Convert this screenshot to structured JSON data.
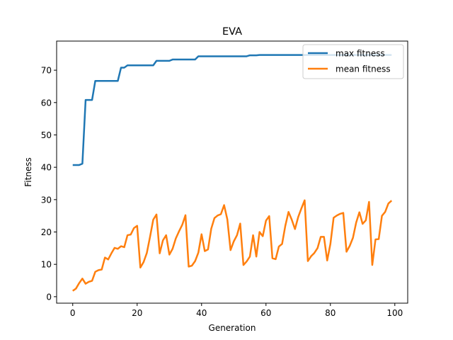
{
  "chart_data": {
    "type": "line",
    "title": "EVA",
    "xlabel": "Generation",
    "ylabel": "Fitness",
    "xlim": [
      -5,
      104
    ],
    "ylim": [
      -2,
      79
    ],
    "xticks": [
      0,
      20,
      40,
      60,
      80,
      100
    ],
    "yticks": [
      0,
      10,
      20,
      30,
      40,
      50,
      60,
      70
    ],
    "legend_position": "top-right",
    "grid": false,
    "x": [
      0,
      1,
      2,
      3,
      4,
      5,
      6,
      7,
      8,
      9,
      10,
      11,
      12,
      13,
      14,
      15,
      16,
      17,
      18,
      19,
      20,
      21,
      22,
      23,
      24,
      25,
      26,
      27,
      28,
      29,
      30,
      31,
      32,
      33,
      34,
      35,
      36,
      37,
      38,
      39,
      40,
      41,
      42,
      43,
      44,
      45,
      46,
      47,
      48,
      49,
      50,
      51,
      52,
      53,
      54,
      55,
      56,
      57,
      58,
      59,
      60,
      61,
      62,
      63,
      64,
      65,
      66,
      67,
      68,
      69,
      70,
      71,
      72,
      73,
      74,
      75,
      76,
      77,
      78,
      79,
      80,
      81,
      82,
      83,
      84,
      85,
      86,
      87,
      88,
      89,
      90,
      91,
      92,
      93,
      94,
      95,
      96,
      97,
      98,
      99
    ],
    "series": [
      {
        "name": "max fitness",
        "color": "#1f77b4",
        "values": [
          40.7,
          40.7,
          40.7,
          41.1,
          60.8,
          60.8,
          60.8,
          66.7,
          66.7,
          66.7,
          66.7,
          66.7,
          66.7,
          66.7,
          66.7,
          70.8,
          70.8,
          71.5,
          71.5,
          71.5,
          71.5,
          71.5,
          71.5,
          71.5,
          71.5,
          71.5,
          72.9,
          72.9,
          72.9,
          72.9,
          72.9,
          73.3,
          73.3,
          73.3,
          73.3,
          73.3,
          73.3,
          73.3,
          73.3,
          74.3,
          74.3,
          74.3,
          74.3,
          74.3,
          74.3,
          74.3,
          74.3,
          74.3,
          74.3,
          74.3,
          74.3,
          74.3,
          74.3,
          74.3,
          74.3,
          74.6,
          74.6,
          74.6,
          74.7,
          74.7,
          74.7,
          74.7,
          74.7,
          74.7,
          74.7,
          74.7,
          74.7,
          74.7,
          74.7,
          74.7,
          74.7,
          74.7,
          74.7,
          74.7,
          74.7,
          74.7,
          74.7,
          74.7,
          74.7,
          74.7,
          74.7,
          74.7,
          74.7,
          74.7,
          74.7,
          74.7,
          74.7,
          74.7,
          74.7,
          74.7,
          74.7,
          74.7,
          74.7,
          74.7,
          74.7,
          74.7,
          74.7,
          74.7,
          74.7,
          74.7
        ]
      },
      {
        "name": "mean fitness",
        "color": "#ff7f0e",
        "values": [
          1.8,
          2.5,
          4.2,
          5.6,
          4.0,
          4.6,
          4.9,
          7.7,
          8.2,
          8.4,
          12.1,
          11.5,
          13.4,
          15.1,
          14.8,
          15.6,
          15.3,
          19.0,
          19.2,
          21.2,
          21.9,
          9.0,
          10.7,
          13.5,
          18.5,
          23.8,
          25.4,
          13.4,
          17.4,
          19.0,
          13.0,
          14.8,
          18.0,
          20.2,
          22.2,
          25.2,
          9.3,
          9.6,
          11.0,
          13.6,
          19.3,
          14.1,
          14.6,
          21.0,
          24.3,
          25.1,
          25.5,
          28.3,
          23.9,
          14.4,
          17.1,
          19.0,
          22.6,
          9.8,
          10.9,
          12.4,
          19.0,
          12.4,
          20.0,
          18.7,
          23.5,
          24.9,
          11.9,
          11.6,
          15.5,
          16.3,
          21.9,
          26.2,
          23.8,
          20.9,
          24.6,
          27.3,
          29.8,
          11.0,
          12.5,
          13.5,
          15.0,
          18.5,
          18.5,
          11.2,
          16.3,
          24.4,
          25.1,
          25.6,
          25.9,
          13.9,
          15.7,
          18.2,
          22.9,
          26.1,
          22.5,
          23.6,
          29.3,
          9.8,
          17.7,
          17.8,
          25.0,
          26.2,
          28.8,
          29.7
        ]
      }
    ]
  }
}
